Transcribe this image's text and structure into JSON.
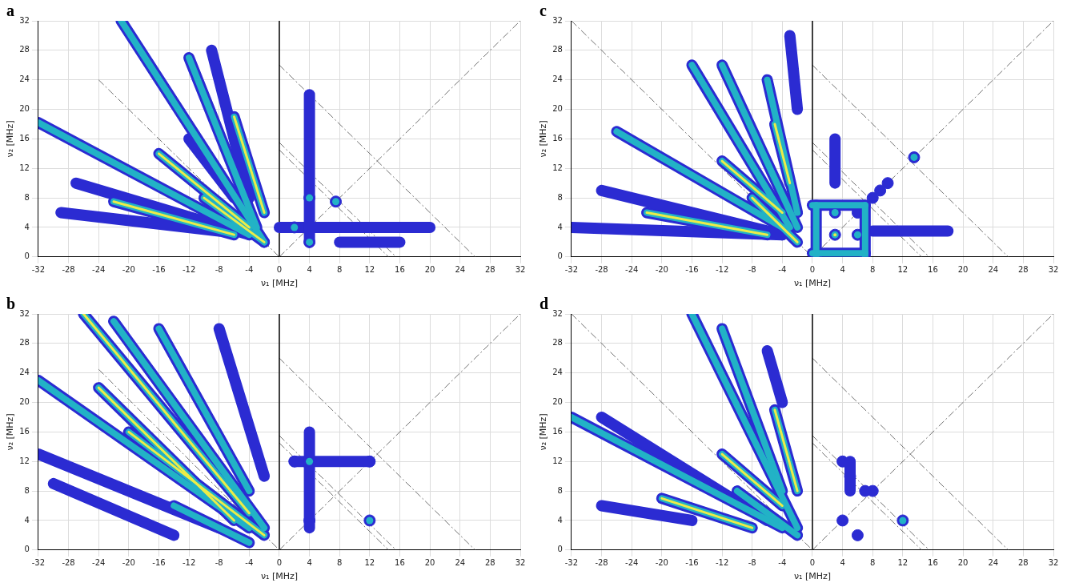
{
  "chart_data": [
    {
      "type": "contour",
      "panel": "a",
      "x_label": "ν₁ [MHz]",
      "y_label": "ν₂ [MHz]",
      "xlim": [
        -32,
        32
      ],
      "xticks": [
        -32,
        -28,
        -24,
        -20,
        -16,
        -12,
        -8,
        -4,
        0,
        4,
        8,
        12,
        16,
        20,
        24,
        28,
        32
      ],
      "ylim": [
        0,
        32
      ],
      "yticks": [
        0,
        4,
        8,
        12,
        16,
        20,
        24,
        28,
        32
      ],
      "grid": true,
      "contour_colors": [
        "#2b2bd2",
        "#22b2c6",
        "#ecec48"
      ],
      "ridges": [
        {
          "from": [
            -32,
            18.2
          ],
          "to": [
            -4,
            3
          ],
          "level": 2
        },
        {
          "from": [
            -27,
            10
          ],
          "to": [
            -4,
            3
          ],
          "level": 1
        },
        {
          "from": [
            -29,
            6
          ],
          "to": [
            -8,
            3.5
          ],
          "level": 1
        },
        {
          "from": [
            -22,
            7.5
          ],
          "to": [
            -6,
            3
          ],
          "level": 3
        },
        {
          "from": [
            -21,
            32
          ],
          "to": [
            -2,
            2
          ],
          "level": 2
        },
        {
          "from": [
            -12,
            27
          ],
          "to": [
            -3,
            4
          ],
          "level": 2
        },
        {
          "from": [
            -9,
            28
          ],
          "to": [
            -4,
            8
          ],
          "level": 1
        },
        {
          "from": [
            -6,
            19
          ],
          "to": [
            -2,
            6
          ],
          "level": 3
        },
        {
          "from": [
            -16,
            14
          ],
          "to": [
            -4,
            4
          ],
          "level": 3
        },
        {
          "from": [
            -12,
            16
          ],
          "to": [
            -6,
            8
          ],
          "level": 1
        },
        {
          "from": [
            -10,
            8
          ],
          "to": [
            -2,
            2
          ],
          "level": 3
        },
        {
          "from": [
            4,
            2
          ],
          "to": [
            4,
            22
          ],
          "level": 1
        },
        {
          "from": [
            0,
            4
          ],
          "to": [
            20,
            4
          ],
          "level": 1
        },
        {
          "from": [
            8,
            2
          ],
          "to": [
            16,
            2
          ],
          "level": 1
        }
      ],
      "peaks": [
        {
          "x": 4,
          "y": 8,
          "level": 2
        },
        {
          "x": 7.5,
          "y": 7.5,
          "level": 2
        },
        {
          "x": 2,
          "y": 4,
          "level": 2
        },
        {
          "x": 4,
          "y": 2,
          "level": 2
        },
        {
          "x": 4,
          "y": 4,
          "level": 1
        }
      ],
      "reference_lines": [
        {
          "from": [
            0,
            0
          ],
          "to": [
            0,
            32
          ],
          "line_style": "solid"
        },
        {
          "from": [
            0,
            0
          ],
          "to": [
            32,
            32
          ],
          "line_style": "dashdot"
        },
        {
          "from": [
            0,
            26
          ],
          "to": [
            26,
            0
          ],
          "line_style": "dashdot"
        },
        {
          "from": [
            0,
            15.5
          ],
          "to": [
            15.5,
            0
          ],
          "line_style": "dashdot"
        },
        {
          "from": [
            0,
            14.5
          ],
          "to": [
            14.5,
            0
          ],
          "line_style": "dashdot"
        },
        {
          "from": [
            -24,
            24
          ],
          "to": [
            0,
            0
          ],
          "line_style": "dashdot"
        }
      ]
    },
    {
      "type": "contour",
      "panel": "b",
      "x_label": "ν₁ [MHz]",
      "y_label": "ν₂ [MHz]",
      "xlim": [
        -32,
        32
      ],
      "xticks": [
        -32,
        -28,
        -24,
        -20,
        -16,
        -12,
        -8,
        -4,
        0,
        4,
        8,
        12,
        16,
        20,
        24,
        28,
        32
      ],
      "ylim": [
        0,
        32
      ],
      "yticks": [
        0,
        4,
        8,
        12,
        16,
        20,
        24,
        28,
        32
      ],
      "grid": true,
      "contour_colors": [
        "#2b2bd2",
        "#22b2c6",
        "#ecec48"
      ],
      "ridges": [
        {
          "from": [
            -32,
            23
          ],
          "to": [
            -4,
            3
          ],
          "level": 2
        },
        {
          "from": [
            -32,
            13
          ],
          "to": [
            -8,
            3
          ],
          "level": 1
        },
        {
          "from": [
            -30,
            9
          ],
          "to": [
            -14,
            2
          ],
          "level": 1
        },
        {
          "from": [
            -26,
            32
          ],
          "to": [
            -4,
            5
          ],
          "level": 3
        },
        {
          "from": [
            -22,
            31
          ],
          "to": [
            -2,
            3
          ],
          "level": 2
        },
        {
          "from": [
            -16,
            30
          ],
          "to": [
            -4,
            8
          ],
          "level": 2
        },
        {
          "from": [
            -8,
            30
          ],
          "to": [
            -2,
            10
          ],
          "level": 1
        },
        {
          "from": [
            -24,
            22
          ],
          "to": [
            -6,
            4
          ],
          "level": 3
        },
        {
          "from": [
            -20,
            16
          ],
          "to": [
            -2,
            2
          ],
          "level": 3
        },
        {
          "from": [
            -14,
            6
          ],
          "to": [
            -4,
            1
          ],
          "level": 2
        },
        {
          "from": [
            4,
            3
          ],
          "to": [
            4,
            16
          ],
          "level": 1
        },
        {
          "from": [
            2,
            12
          ],
          "to": [
            12,
            12
          ],
          "level": 1
        }
      ],
      "peaks": [
        {
          "x": 4,
          "y": 12,
          "level": 2
        },
        {
          "x": 12,
          "y": 12,
          "level": 1
        },
        {
          "x": 12,
          "y": 4,
          "level": 2
        },
        {
          "x": 4,
          "y": 4,
          "level": 1
        },
        {
          "x": 2,
          "y": 12,
          "level": 1
        }
      ],
      "reference_lines": [
        {
          "from": [
            0,
            0
          ],
          "to": [
            0,
            32
          ],
          "line_style": "solid"
        },
        {
          "from": [
            0,
            0
          ],
          "to": [
            32,
            32
          ],
          "line_style": "dashdot"
        },
        {
          "from": [
            0,
            26
          ],
          "to": [
            26,
            0
          ],
          "line_style": "dashdot"
        },
        {
          "from": [
            0,
            15.5
          ],
          "to": [
            15.5,
            0
          ],
          "line_style": "dashdot"
        },
        {
          "from": [
            0,
            14.5
          ],
          "to": [
            14.5,
            0
          ],
          "line_style": "dashdot"
        },
        {
          "from": [
            -24,
            24.5
          ],
          "to": [
            0,
            0
          ],
          "line_style": "dashdot"
        }
      ]
    },
    {
      "type": "contour",
      "panel": "c",
      "x_label": "ν₁ [MHz]",
      "y_label": "ν₂ [MHz]",
      "xlim": [
        -32,
        32
      ],
      "xticks": [
        -32,
        -28,
        -24,
        -20,
        -16,
        -12,
        -8,
        -4,
        0,
        4,
        8,
        12,
        16,
        20,
        24,
        28,
        32
      ],
      "ylim": [
        0,
        32
      ],
      "yticks": [
        0,
        4,
        8,
        12,
        16,
        20,
        24,
        28,
        32
      ],
      "grid": true,
      "contour_colors": [
        "#2b2bd2",
        "#22b2c6",
        "#ecec48"
      ],
      "ridges": [
        {
          "from": [
            -32,
            4
          ],
          "to": [
            -4,
            3
          ],
          "level": 1
        },
        {
          "from": [
            -28,
            9
          ],
          "to": [
            -4,
            3
          ],
          "level": 1
        },
        {
          "from": [
            -26,
            17
          ],
          "to": [
            -4,
            4
          ],
          "level": 2
        },
        {
          "from": [
            -22,
            6
          ],
          "to": [
            -6,
            3
          ],
          "level": 3
        },
        {
          "from": [
            -16,
            26
          ],
          "to": [
            -3,
            4
          ],
          "level": 2
        },
        {
          "from": [
            -12,
            26
          ],
          "to": [
            -2,
            4
          ],
          "level": 2
        },
        {
          "from": [
            -6,
            24
          ],
          "to": [
            -2,
            6
          ],
          "level": 2
        },
        {
          "from": [
            -5,
            18
          ],
          "to": [
            -3,
            10
          ],
          "level": 3
        },
        {
          "from": [
            -12,
            13
          ],
          "to": [
            -4,
            6
          ],
          "level": 3
        },
        {
          "from": [
            -8,
            8
          ],
          "to": [
            -2,
            2
          ],
          "level": 3
        },
        {
          "from": [
            -3,
            30
          ],
          "to": [
            -2,
            20
          ],
          "level": 1
        },
        {
          "from": [
            0,
            7
          ],
          "to": [
            7,
            7
          ],
          "level": 2
        },
        {
          "from": [
            0,
            0.5
          ],
          "to": [
            7,
            0.5
          ],
          "level": 2
        },
        {
          "from": [
            0.5,
            0
          ],
          "to": [
            0.5,
            7
          ],
          "level": 2
        },
        {
          "from": [
            7,
            0
          ],
          "to": [
            7,
            7
          ],
          "level": 2
        },
        {
          "from": [
            3,
            10
          ],
          "to": [
            3,
            16
          ],
          "level": 1
        },
        {
          "from": [
            8,
            3.5
          ],
          "to": [
            18,
            3.5
          ],
          "level": 1
        }
      ],
      "peaks": [
        {
          "x": 3,
          "y": 6,
          "level": 2
        },
        {
          "x": 6,
          "y": 3,
          "level": 2
        },
        {
          "x": 3,
          "y": 3,
          "level": 3
        },
        {
          "x": 6,
          "y": 6,
          "level": 1
        },
        {
          "x": 13.5,
          "y": 13.5,
          "level": 2
        },
        {
          "x": 8,
          "y": 8,
          "level": 1
        },
        {
          "x": 9,
          "y": 9,
          "level": 1
        },
        {
          "x": 10,
          "y": 10,
          "level": 1
        }
      ],
      "reference_lines": [
        {
          "from": [
            0,
            0
          ],
          "to": [
            0,
            32
          ],
          "line_style": "solid"
        },
        {
          "from": [
            0,
            0
          ],
          "to": [
            32,
            32
          ],
          "line_style": "dashdot"
        },
        {
          "from": [
            0,
            26
          ],
          "to": [
            26,
            0
          ],
          "line_style": "dashdot"
        },
        {
          "from": [
            0,
            15.5
          ],
          "to": [
            15.5,
            0
          ],
          "line_style": "dashdot"
        },
        {
          "from": [
            0,
            14.5
          ],
          "to": [
            14.5,
            0
          ],
          "line_style": "dashdot"
        },
        {
          "from": [
            -32,
            32
          ],
          "to": [
            0,
            0
          ],
          "line_style": "dashdot"
        }
      ]
    },
    {
      "type": "contour",
      "panel": "d",
      "x_label": "ν₁ [MHz]",
      "y_label": "ν₂ [MHz]",
      "xlim": [
        -32,
        32
      ],
      "xticks": [
        -32,
        -28,
        -24,
        -20,
        -16,
        -12,
        -8,
        -4,
        0,
        4,
        8,
        12,
        16,
        20,
        24,
        28,
        32
      ],
      "ylim": [
        0,
        32
      ],
      "yticks": [
        0,
        4,
        8,
        12,
        16,
        20,
        24,
        28,
        32
      ],
      "grid": true,
      "contour_colors": [
        "#2b2bd2",
        "#22b2c6",
        "#ecec48"
      ],
      "ridges": [
        {
          "from": [
            -32,
            18
          ],
          "to": [
            -4,
            3
          ],
          "level": 2
        },
        {
          "from": [
            -28,
            18
          ],
          "to": [
            -6,
            4
          ],
          "level": 1
        },
        {
          "from": [
            -28,
            6
          ],
          "to": [
            -16,
            4
          ],
          "level": 1
        },
        {
          "from": [
            -20,
            7
          ],
          "to": [
            -8,
            3
          ],
          "level": 3
        },
        {
          "from": [
            -16,
            32
          ],
          "to": [
            -2,
            3
          ],
          "level": 2
        },
        {
          "from": [
            -12,
            30
          ],
          "to": [
            -4,
            8
          ],
          "level": 2
        },
        {
          "from": [
            -6,
            27
          ],
          "to": [
            -4,
            20
          ],
          "level": 1
        },
        {
          "from": [
            -5,
            19
          ],
          "to": [
            -2,
            8
          ],
          "level": 3
        },
        {
          "from": [
            -12,
            13
          ],
          "to": [
            -4,
            6
          ],
          "level": 3
        },
        {
          "from": [
            -10,
            8
          ],
          "to": [
            -2,
            2
          ],
          "level": 2
        },
        {
          "from": [
            5,
            8
          ],
          "to": [
            5,
            12
          ],
          "level": 1
        }
      ],
      "peaks": [
        {
          "x": 4,
          "y": 12,
          "level": 1
        },
        {
          "x": 5,
          "y": 10,
          "level": 1
        },
        {
          "x": 7,
          "y": 8,
          "level": 1
        },
        {
          "x": 12,
          "y": 4,
          "level": 2
        },
        {
          "x": 4,
          "y": 4,
          "level": 1
        },
        {
          "x": 6,
          "y": 2,
          "level": 1
        },
        {
          "x": 8,
          "y": 8,
          "level": 1
        }
      ],
      "reference_lines": [
        {
          "from": [
            0,
            0
          ],
          "to": [
            0,
            32
          ],
          "line_style": "solid"
        },
        {
          "from": [
            0,
            0
          ],
          "to": [
            32,
            32
          ],
          "line_style": "dashdot"
        },
        {
          "from": [
            0,
            26
          ],
          "to": [
            26,
            0
          ],
          "line_style": "dashdot"
        },
        {
          "from": [
            0,
            15.5
          ],
          "to": [
            15.5,
            0
          ],
          "line_style": "dashdot"
        },
        {
          "from": [
            0,
            14.5
          ],
          "to": [
            14.5,
            0
          ],
          "line_style": "dashdot"
        },
        {
          "from": [
            -32,
            32
          ],
          "to": [
            0,
            0
          ],
          "line_style": "dashdot"
        }
      ]
    }
  ]
}
